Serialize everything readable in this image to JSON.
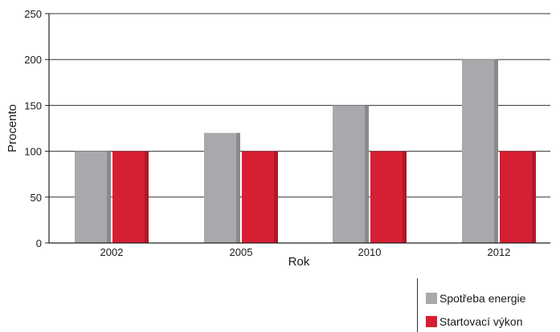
{
  "chart_data": {
    "type": "bar",
    "categories": [
      "2002",
      "2005",
      "2010",
      "2012"
    ],
    "series": [
      {
        "name": "Spotřeba energie",
        "values": [
          100,
          120,
          150,
          200
        ],
        "color": "#a7a9ac"
      },
      {
        "name": "Startovací výkon",
        "values": [
          100,
          100,
          100,
          100
        ],
        "color": "#d71f33"
      }
    ],
    "xlabel": "Rok",
    "ylabel": "Procento",
    "ylim": [
      0,
      250
    ],
    "yticks": [
      "0",
      "50",
      "100",
      "150",
      "200",
      "250"
    ],
    "grid": true,
    "legend_position": "bottom-right"
  }
}
